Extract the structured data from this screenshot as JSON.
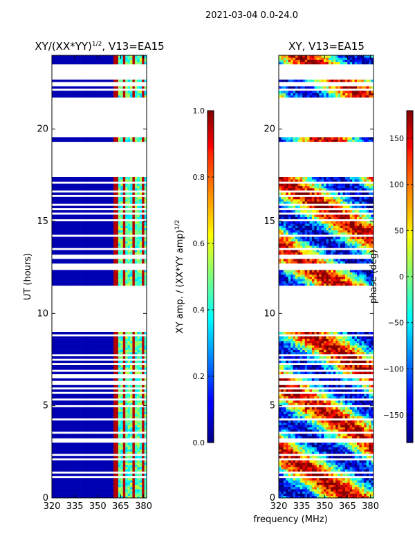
{
  "figure": {
    "suptitle": "2021-03-04 0.0-24.0",
    "xlabel": "frequency (MHz)"
  },
  "chart_data": [
    {
      "type": "heatmap",
      "title_prefix": "XY/(XX*YY)",
      "title_sup": "1/2",
      "title_suffix": ", V13=EA15",
      "xlabel": "frequency (MHz)",
      "ylabel": "UT (hours)",
      "xlim": [
        320,
        382
      ],
      "ylim": [
        0,
        24
      ],
      "xticks": [
        "320",
        "335",
        "350",
        "365",
        "380"
      ],
      "xtick_values": [
        320,
        335,
        350,
        365,
        380
      ],
      "yticks": [
        "0",
        "5",
        "10",
        "15",
        "20"
      ],
      "ytick_values": [
        0,
        5,
        10,
        15,
        20
      ],
      "colormap": "jet",
      "colorbar": {
        "label_prefix": "XY amp. / (XX*YY amp)",
        "label_sup": "1/2",
        "range": [
          0.0,
          1.0
        ],
        "ticks": [
          "0.0",
          "0.2",
          "0.4",
          "0.6",
          "0.8",
          "1.0"
        ],
        "tick_values": [
          0.0,
          0.2,
          0.4,
          0.6,
          0.8,
          1.0
        ]
      },
      "data_gaps_hours": [
        [
          9.0,
          11.5
        ],
        [
          17.4,
          19.2
        ],
        [
          19.5,
          21.7
        ],
        [
          22.6,
          23.3
        ]
      ],
      "description_values": {
        "background": 0.05,
        "bright_band_mhz": [
          360,
          381
        ],
        "bright_level": 0.45
      }
    },
    {
      "type": "heatmap",
      "title": "XY, V13=EA15",
      "xlabel": "frequency (MHz)",
      "ylabel": "",
      "xlim": [
        320,
        382
      ],
      "ylim": [
        0,
        24
      ],
      "xticks": [
        "320",
        "335",
        "350",
        "365",
        "380"
      ],
      "xtick_values": [
        320,
        335,
        350,
        365,
        380
      ],
      "yticks": [
        "0",
        "5",
        "10",
        "15",
        "20"
      ],
      "ytick_values": [
        0,
        5,
        10,
        15,
        20
      ],
      "colormap": "jet",
      "colorbar": {
        "label": "phase (deg)",
        "range": [
          -180,
          180
        ],
        "ticks": [
          "−150",
          "−100",
          "−50",
          "0",
          "50",
          "100",
          "150"
        ],
        "tick_values": [
          -150,
          -100,
          -50,
          0,
          50,
          100,
          150
        ]
      },
      "data_gaps_hours": [
        [
          9.0,
          11.5
        ],
        [
          17.4,
          19.2
        ],
        [
          19.5,
          21.7
        ],
        [
          22.6,
          23.3
        ]
      ]
    }
  ]
}
